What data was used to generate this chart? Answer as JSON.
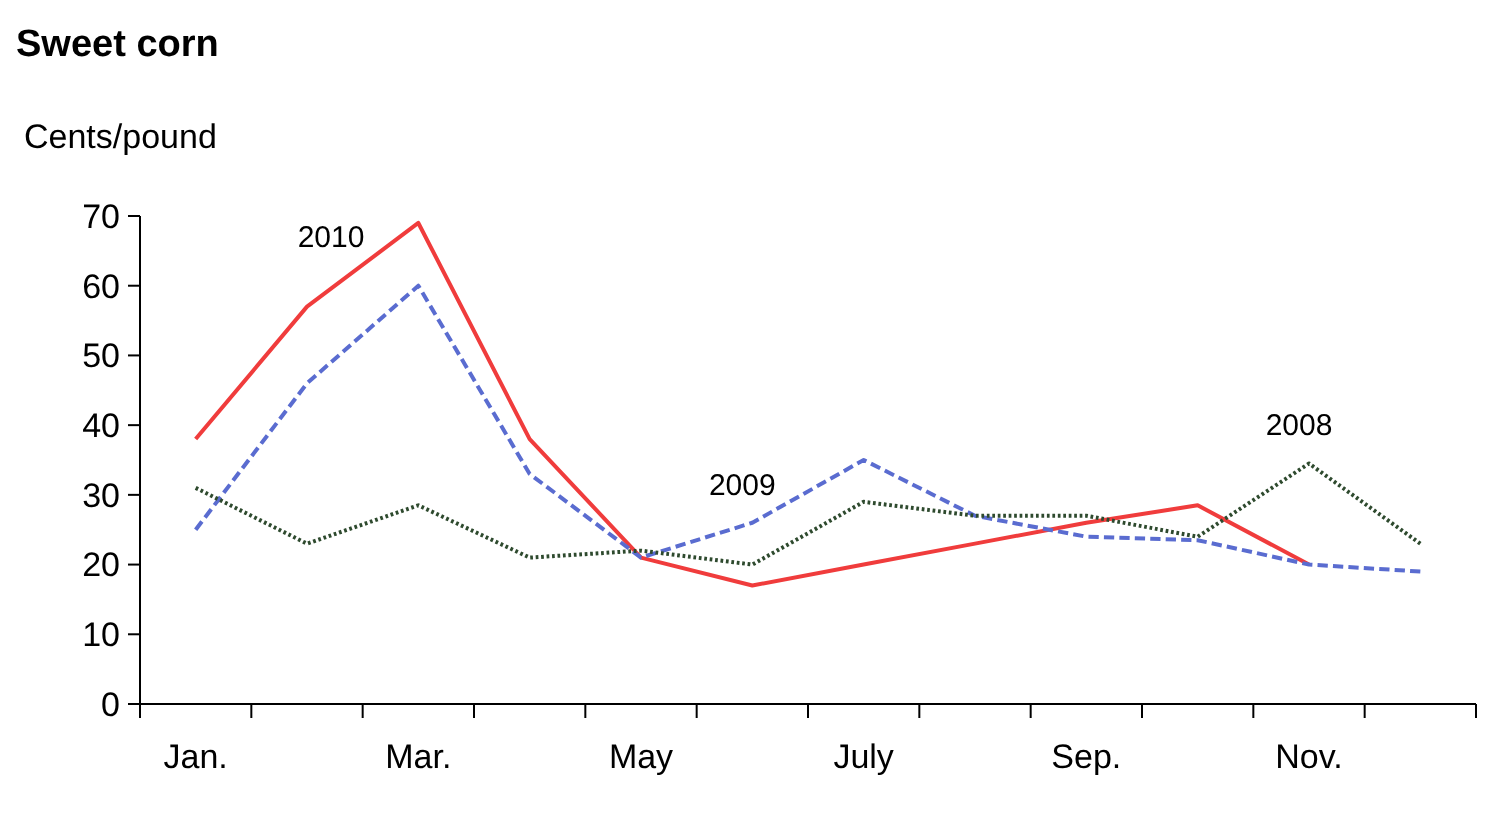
{
  "chart_data": {
    "type": "line",
    "title": "Sweet corn",
    "ylabel": "Cents/pound",
    "categories": [
      "Jan.",
      null,
      "Mar.",
      null,
      "May",
      null,
      "July",
      null,
      "Sep.",
      null,
      "Nov.",
      null
    ],
    "ylim": [
      0,
      70
    ],
    "yticks": [
      0,
      10,
      20,
      30,
      40,
      50,
      60,
      70
    ],
    "grid": false,
    "marker": "none",
    "series": [
      {
        "name": "2010",
        "color": "#f03c3c",
        "line_style": "solid",
        "values": [
          38,
          57,
          69,
          38,
          21,
          17,
          20,
          23,
          26,
          28.5,
          20,
          null
        ]
      },
      {
        "name": "2009",
        "color": "#5a6cd0",
        "line_style": "dashed",
        "values": [
          25,
          46,
          60,
          33,
          21,
          26,
          35,
          27,
          24,
          23.5,
          20,
          19
        ]
      },
      {
        "name": "2008",
        "color": "#2e4a2e",
        "line_style": "dotted",
        "values": [
          31,
          23,
          28.5,
          21,
          22,
          20,
          29,
          27,
          27,
          24,
          34.5,
          23
        ]
      }
    ]
  }
}
